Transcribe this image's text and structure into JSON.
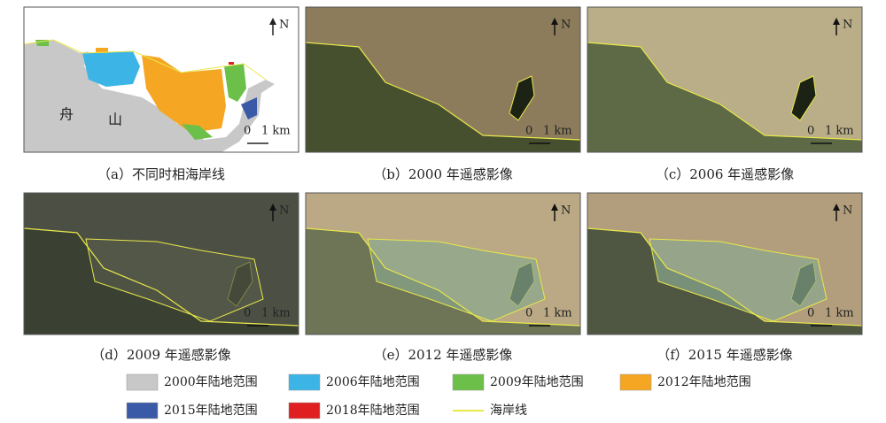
{
  "panels": [
    {
      "caption": "（a）不同时相海岸线",
      "north": "N",
      "scale_start": "0",
      "scale_end": "1 km",
      "labels": [
        "舟",
        "山"
      ]
    },
    {
      "caption": "（b）2000 年遥感影像",
      "north": "N",
      "scale_start": "0",
      "scale_end": "1 km"
    },
    {
      "caption": "（c）2006 年遥感影像",
      "north": "N",
      "scale_start": "0",
      "scale_end": "1 km"
    },
    {
      "caption": "（d）2009 年遥感影像",
      "north": "N",
      "scale_start": "0",
      "scale_end": "1 km"
    },
    {
      "caption": "（e）2012 年遥感影像",
      "north": "N",
      "scale_start": "0",
      "scale_end": "1 km"
    },
    {
      "caption": "（f）2015 年遥感影像",
      "north": "N",
      "scale_start": "0",
      "scale_end": "1 km"
    }
  ],
  "legend": [
    {
      "label": "2000年陆地范围",
      "color": "#c8c8c8"
    },
    {
      "label": "2006年陆地范围",
      "color": "#3cb4e6"
    },
    {
      "label": "2009年陆地范围",
      "color": "#6cc04a"
    },
    {
      "label": "2012年陆地范围",
      "color": "#f5a623"
    },
    {
      "label": "2015年陆地范围",
      "color": "#3a5aa8"
    },
    {
      "label": "2018年陆地范围",
      "color": "#e02020"
    },
    {
      "label": "海岸线",
      "color": "#e8e84a"
    }
  ]
}
